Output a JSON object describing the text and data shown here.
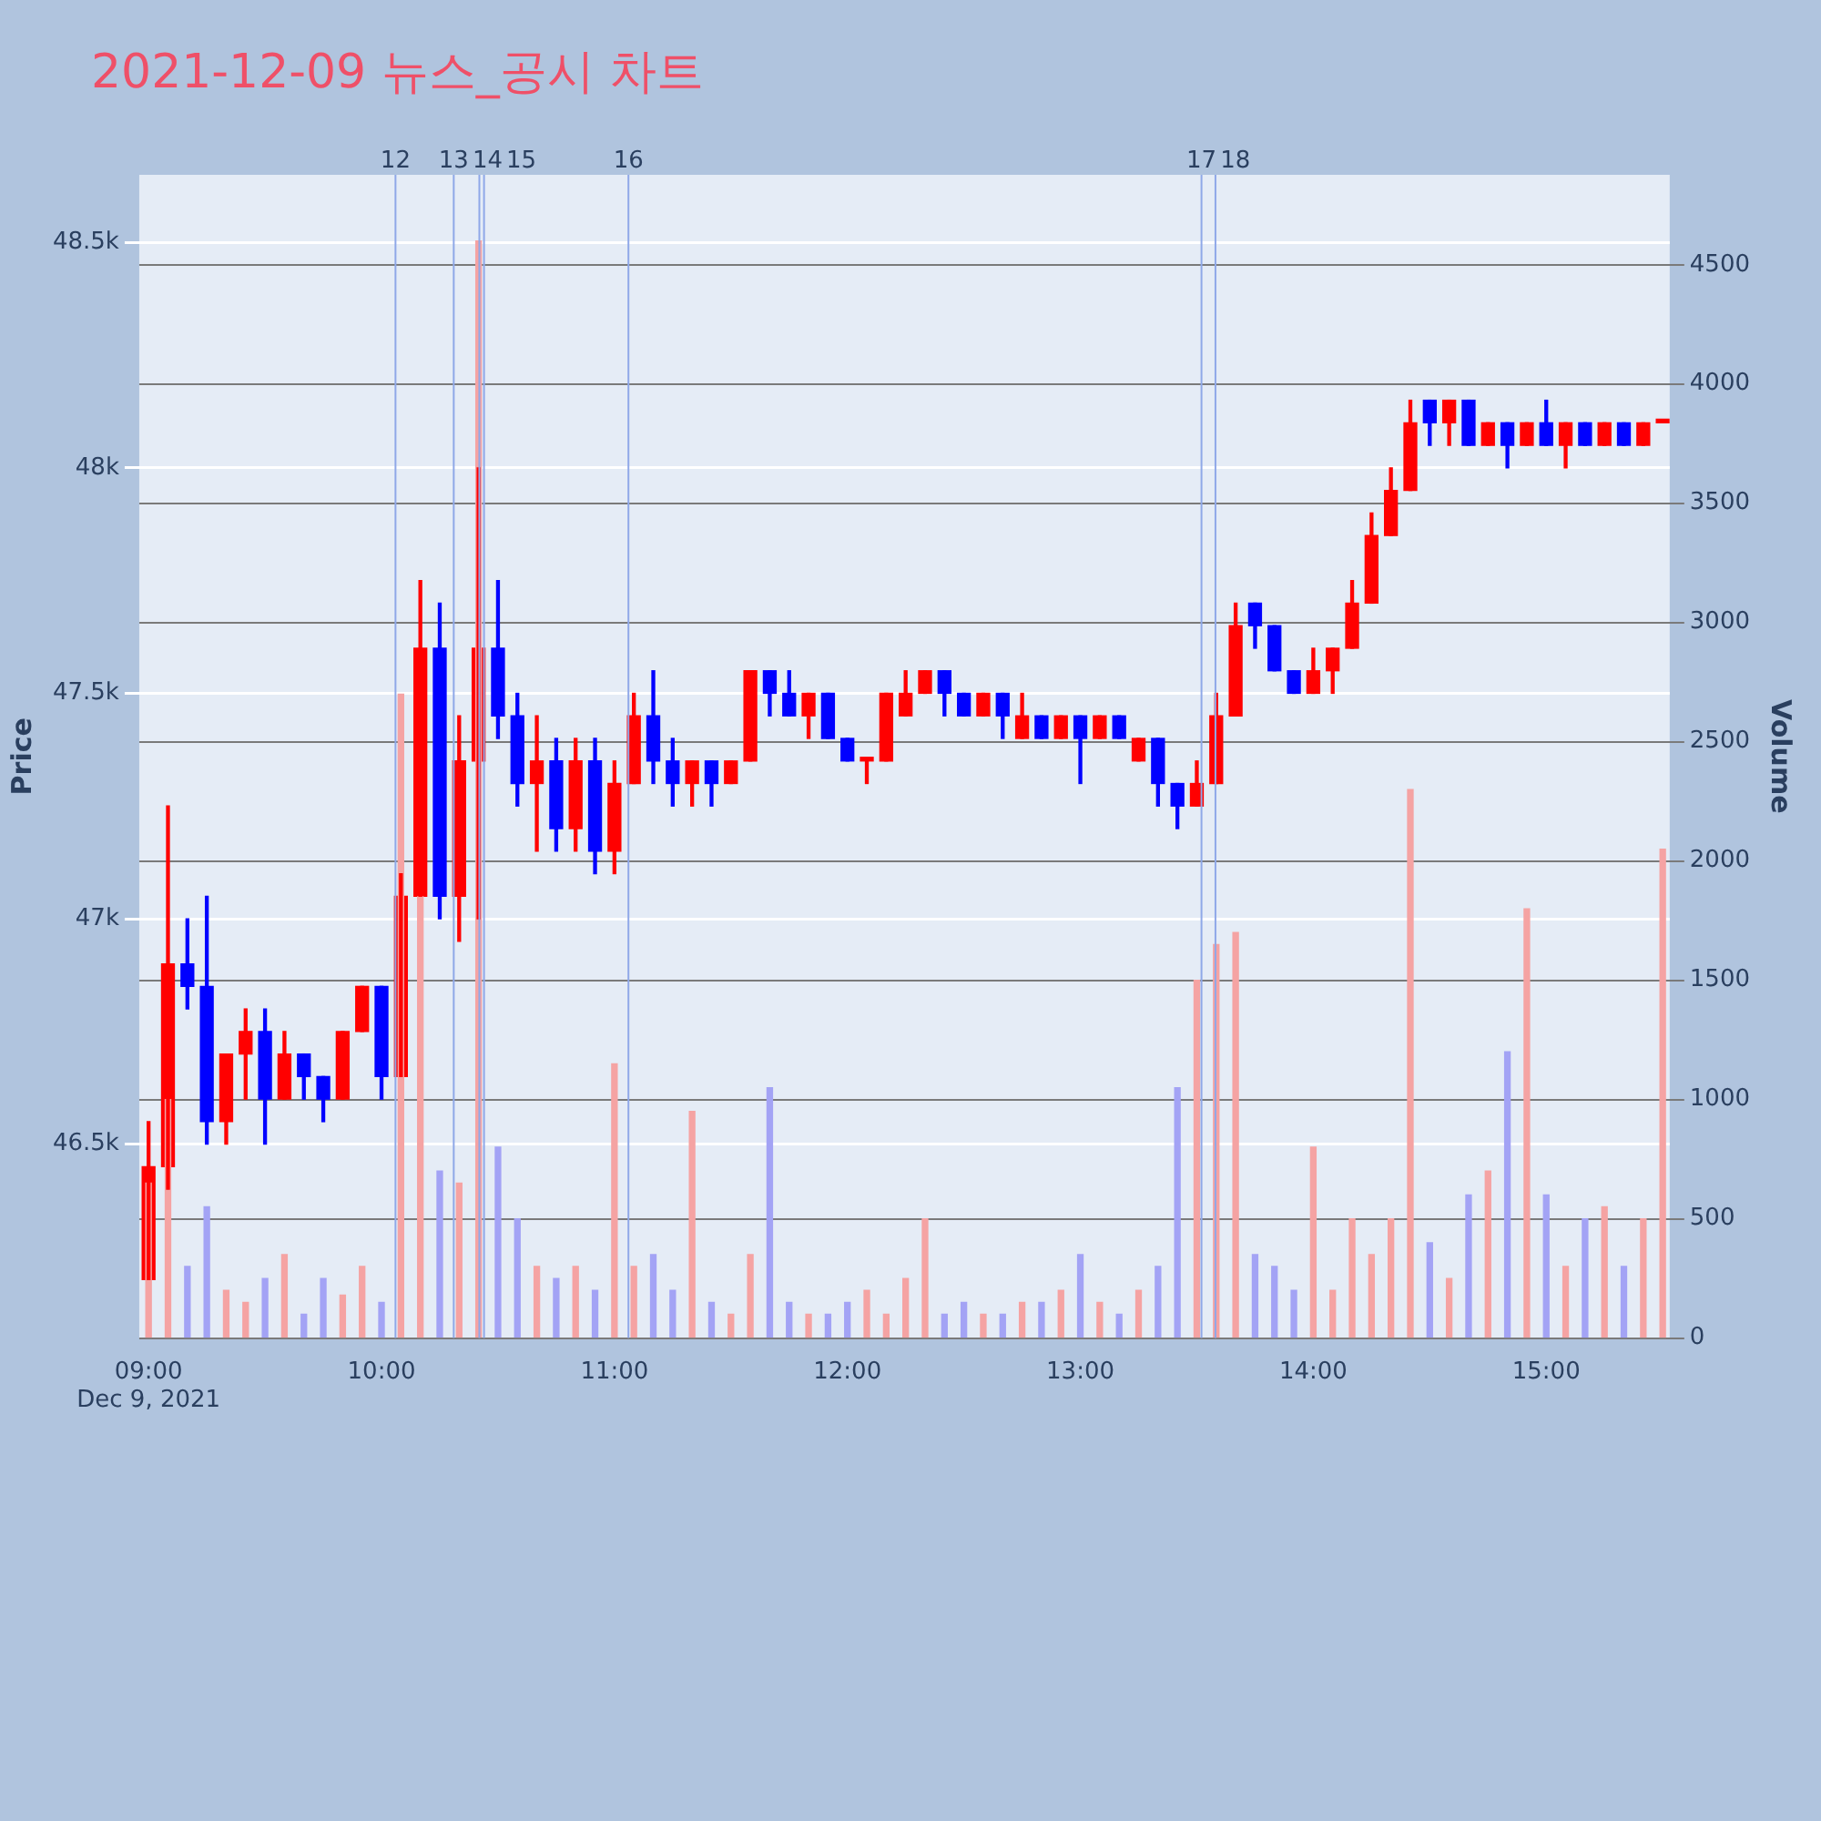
{
  "chart_data": {
    "type": "candlestick",
    "title": "2021-12-09 뉴스_공시 차트",
    "ylabel": "Price",
    "y2label": "Volume",
    "x": [
      9,
      9.0833,
      9.1667,
      9.25,
      9.3333,
      9.4167,
      9.5,
      9.5833,
      9.6667,
      9.75,
      9.8333,
      9.9167,
      10,
      10.0833,
      10.1667,
      10.25,
      10.3333,
      10.4167,
      10.5,
      10.5833,
      10.6667,
      10.75,
      10.8333,
      10.9167,
      11,
      11.0833,
      11.1667,
      11.25,
      11.3333,
      11.4167,
      11.5,
      11.5833,
      11.6667,
      11.75,
      11.8333,
      11.9167,
      12,
      12.0833,
      12.1667,
      12.25,
      12.3333,
      12.4167,
      12.5,
      12.5833,
      12.6667,
      12.75,
      12.8333,
      12.9167,
      13,
      13.0833,
      13.1667,
      13.25,
      13.3333,
      13.4167,
      13.5,
      13.5833,
      13.6667,
      13.75,
      13.8333,
      13.9167,
      14,
      14.0833,
      14.1667,
      14.25,
      14.3333,
      14.4167,
      14.5,
      14.5833,
      14.6667,
      14.75,
      14.8333,
      14.9167,
      15,
      15.0833,
      15.1667,
      15.25,
      15.3333,
      15.4167,
      15.5
    ],
    "ohlc": [
      [
        46200,
        46550,
        46200,
        46450
      ],
      [
        46450,
        47250,
        46400,
        46900
      ],
      [
        46900,
        47000,
        46800,
        46850
      ],
      [
        46850,
        47050,
        46500,
        46550
      ],
      [
        46550,
        46700,
        46500,
        46700
      ],
      [
        46700,
        46800,
        46600,
        46750
      ],
      [
        46750,
        46800,
        46500,
        46600
      ],
      [
        46600,
        46750,
        46600,
        46700
      ],
      [
        46700,
        46700,
        46600,
        46650
      ],
      [
        46650,
        46650,
        46550,
        46600
      ],
      [
        46600,
        46750,
        46600,
        46750
      ],
      [
        46750,
        46850,
        46750,
        46850
      ],
      [
        46850,
        46850,
        46600,
        46650
      ],
      [
        46650,
        47100,
        46650,
        47050
      ],
      [
        47050,
        47750,
        47050,
        47600
      ],
      [
        47600,
        47700,
        47000,
        47050
      ],
      [
        47050,
        47450,
        46950,
        47350
      ],
      [
        47350,
        48000,
        47000,
        47600
      ],
      [
        47600,
        47750,
        47400,
        47450
      ],
      [
        47450,
        47500,
        47250,
        47300
      ],
      [
        47300,
        47450,
        47150,
        47350
      ],
      [
        47350,
        47400,
        47150,
        47200
      ],
      [
        47200,
        47400,
        47150,
        47350
      ],
      [
        47350,
        47400,
        47100,
        47150
      ],
      [
        47150,
        47350,
        47100,
        47300
      ],
      [
        47300,
        47500,
        47300,
        47450
      ],
      [
        47450,
        47550,
        47300,
        47350
      ],
      [
        47350,
        47400,
        47250,
        47300
      ],
      [
        47300,
        47350,
        47250,
        47350
      ],
      [
        47350,
        47350,
        47250,
        47300
      ],
      [
        47300,
        47350,
        47300,
        47350
      ],
      [
        47350,
        47550,
        47350,
        47550
      ],
      [
        47550,
        47550,
        47450,
        47500
      ],
      [
        47500,
        47550,
        47450,
        47450
      ],
      [
        47450,
        47500,
        47400,
        47500
      ],
      [
        47500,
        47500,
        47400,
        47400
      ],
      [
        47400,
        47400,
        47350,
        47350
      ],
      [
        47350,
        47350,
        47300,
        47350
      ],
      [
        47350,
        47500,
        47350,
        47500
      ],
      [
        47450,
        47550,
        47450,
        47500
      ],
      [
        47500,
        47550,
        47500,
        47550
      ],
      [
        47550,
        47550,
        47450,
        47500
      ],
      [
        47500,
        47500,
        47450,
        47450
      ],
      [
        47450,
        47500,
        47450,
        47500
      ],
      [
        47500,
        47500,
        47400,
        47450
      ],
      [
        47400,
        47500,
        47400,
        47450
      ],
      [
        47450,
        47450,
        47400,
        47400
      ],
      [
        47400,
        47450,
        47400,
        47450
      ],
      [
        47450,
        47450,
        47300,
        47400
      ],
      [
        47400,
        47450,
        47400,
        47450
      ],
      [
        47450,
        47450,
        47400,
        47400
      ],
      [
        47350,
        47400,
        47350,
        47400
      ],
      [
        47400,
        47400,
        47250,
        47300
      ],
      [
        47300,
        47300,
        47200,
        47250
      ],
      [
        47250,
        47350,
        47250,
        47300
      ],
      [
        47300,
        47500,
        47300,
        47450
      ],
      [
        47450,
        47700,
        47450,
        47650
      ],
      [
        47700,
        47700,
        47600,
        47650
      ],
      [
        47650,
        47650,
        47550,
        47550
      ],
      [
        47550,
        47550,
        47500,
        47500
      ],
      [
        47500,
        47600,
        47500,
        47550
      ],
      [
        47550,
        47600,
        47500,
        47600
      ],
      [
        47600,
        47750,
        47600,
        47700
      ],
      [
        47700,
        47900,
        47700,
        47850
      ],
      [
        47850,
        48000,
        47850,
        47950
      ],
      [
        47950,
        48150,
        47950,
        48100
      ],
      [
        48150,
        48150,
        48050,
        48100
      ],
      [
        48100,
        48150,
        48050,
        48150
      ],
      [
        48150,
        48150,
        48050,
        48050
      ],
      [
        48050,
        48100,
        48050,
        48100
      ],
      [
        48100,
        48100,
        48000,
        48050
      ],
      [
        48050,
        48100,
        48050,
        48100
      ],
      [
        48100,
        48150,
        48050,
        48050
      ],
      [
        48050,
        48100,
        48000,
        48100
      ],
      [
        48100,
        48100,
        48050,
        48050
      ],
      [
        48050,
        48100,
        48050,
        48100
      ],
      [
        48100,
        48100,
        48050,
        48050
      ],
      [
        48050,
        48100,
        48050,
        48100
      ],
      [
        48100,
        48100,
        48100,
        48100
      ]
    ],
    "colors": [
      "#ff0000",
      "#ff0000",
      "#0000ff",
      "#0000ff",
      "#ff0000",
      "#ff0000",
      "#0000ff",
      "#ff0000",
      "#0000ff",
      "#0000ff",
      "#ff0000",
      "#ff0000",
      "#0000ff",
      "#ff0000",
      "#ff0000",
      "#0000ff",
      "#ff0000",
      "#ff0000",
      "#0000ff",
      "#0000ff",
      "#ff0000",
      "#0000ff",
      "#ff0000",
      "#0000ff",
      "#ff0000",
      "#ff0000",
      "#0000ff",
      "#0000ff",
      "#ff0000",
      "#0000ff",
      "#ff0000",
      "#ff0000",
      "#0000ff",
      "#0000ff",
      "#ff0000",
      "#0000ff",
      "#0000ff",
      "#ff0000",
      "#ff0000",
      "#ff0000",
      "#ff0000",
      "#0000ff",
      "#0000ff",
      "#ff0000",
      "#0000ff",
      "#ff0000",
      "#0000ff",
      "#ff0000",
      "#0000ff",
      "#ff0000",
      "#0000ff",
      "#ff0000",
      "#0000ff",
      "#0000ff",
      "#ff0000",
      "#ff0000",
      "#ff0000",
      "#0000ff",
      "#0000ff",
      "#0000ff",
      "#ff0000",
      "#ff0000",
      "#ff0000",
      "#ff0000",
      "#ff0000",
      "#ff0000",
      "#0000ff",
      "#ff0000",
      "#0000ff",
      "#ff0000",
      "#0000ff",
      "#ff0000",
      "#0000ff",
      "#ff0000",
      "#0000ff",
      "#ff0000",
      "#0000ff",
      "#ff0000",
      "#ff0000"
    ],
    "series": [
      {
        "type": "bar",
        "axis": "y2",
        "values": [
          650,
          1000,
          300,
          550,
          200,
          150,
          250,
          350,
          100,
          250,
          180,
          300,
          150,
          2700,
          1850,
          700,
          650,
          4600,
          800,
          500,
          300,
          250,
          300,
          200,
          1150,
          300,
          350,
          200,
          950,
          150,
          100,
          350,
          1050,
          150,
          100,
          100,
          150,
          200,
          100,
          250,
          500,
          100,
          150,
          100,
          100,
          150,
          150,
          200,
          350,
          150,
          100,
          200,
          300,
          1050,
          1500,
          1650,
          1700,
          350,
          300,
          200,
          800,
          200,
          500,
          350,
          500,
          2300,
          400,
          250,
          600,
          700,
          1200,
          1800,
          600,
          300,
          500,
          550,
          300,
          500,
          2050
        ],
        "colors": [
          "#f5a3a3",
          "#f5a3a3",
          "#a3a3f5",
          "#a3a3f5",
          "#f5a3a3",
          "#f5a3a3",
          "#a3a3f5",
          "#f5a3a3",
          "#a3a3f5",
          "#a3a3f5",
          "#f5a3a3",
          "#f5a3a3",
          "#a3a3f5",
          "#f5a3a3",
          "#f5a3a3",
          "#a3a3f5",
          "#f5a3a3",
          "#f5a3a3",
          "#a3a3f5",
          "#a3a3f5",
          "#f5a3a3",
          "#a3a3f5",
          "#f5a3a3",
          "#a3a3f5",
          "#f5a3a3",
          "#f5a3a3",
          "#a3a3f5",
          "#a3a3f5",
          "#f5a3a3",
          "#a3a3f5",
          "#f5a3a3",
          "#f5a3a3",
          "#a3a3f5",
          "#a3a3f5",
          "#f5a3a3",
          "#a3a3f5",
          "#a3a3f5",
          "#f5a3a3",
          "#f5a3a3",
          "#f5a3a3",
          "#f5a3a3",
          "#a3a3f5",
          "#a3a3f5",
          "#f5a3a3",
          "#a3a3f5",
          "#f5a3a3",
          "#a3a3f5",
          "#f5a3a3",
          "#a3a3f5",
          "#f5a3a3",
          "#a3a3f5",
          "#f5a3a3",
          "#a3a3f5",
          "#a3a3f5",
          "#f5a3a3",
          "#f5a3a3",
          "#f5a3a3",
          "#a3a3f5",
          "#a3a3f5",
          "#a3a3f5",
          "#f5a3a3",
          "#f5a3a3",
          "#f5a3a3",
          "#f5a3a3",
          "#f5a3a3",
          "#f5a3a3",
          "#a3a3f5",
          "#f5a3a3",
          "#a3a3f5",
          "#f5a3a3",
          "#a3a3f5",
          "#f5a3a3",
          "#a3a3f5",
          "#f5a3a3",
          "#a3a3f5",
          "#f5a3a3",
          "#a3a3f5",
          "#f5a3a3",
          "#f5a3a3"
        ]
      }
    ],
    "xlim": [
      8.96,
      15.53
    ],
    "xticks": [
      {
        "value": 9,
        "label": "09:00\nDec 9, 2021"
      },
      {
        "value": 10,
        "label": "10:00"
      },
      {
        "value": 11,
        "label": "11:00"
      },
      {
        "value": 12,
        "label": "12:00"
      },
      {
        "value": 13,
        "label": "13:00"
      },
      {
        "value": 14,
        "label": "14:00"
      },
      {
        "value": 15,
        "label": "15:00"
      }
    ],
    "ylim": [
      46070,
      48650
    ],
    "yticks": [
      {
        "value": 46500,
        "label": "46.5k"
      },
      {
        "value": 47000,
        "label": "47k"
      },
      {
        "value": 47500,
        "label": "47.5k"
      },
      {
        "value": 48000,
        "label": "48k"
      },
      {
        "value": 48500,
        "label": "48.5k"
      }
    ],
    "y2lim": [
      0,
      4877
    ],
    "y2ticks": [
      0,
      500,
      1000,
      1500,
      2000,
      2500,
      3000,
      3500,
      4000,
      4500
    ],
    "grid": "y",
    "ref_lines": [
      {
        "axis": "x",
        "value": 10.06,
        "color": "#8fa8e8"
      },
      {
        "axis": "x",
        "value": 10.31,
        "color": "#8fa8e8"
      },
      {
        "axis": "x",
        "value": 10.42,
        "color": "#8fa8e8"
      },
      {
        "axis": "x",
        "value": 10.44,
        "color": "#8fa8e8"
      },
      {
        "axis": "x",
        "value": 11.06,
        "color": "#8fa8e8"
      },
      {
        "axis": "x",
        "value": 13.52,
        "color": "#8fa8e8"
      },
      {
        "axis": "x",
        "value": 13.58,
        "color": "#8fa8e8"
      }
    ],
    "annotations": [
      "12",
      "13",
      "14",
      "15",
      "16",
      "17",
      "18"
    ]
  }
}
